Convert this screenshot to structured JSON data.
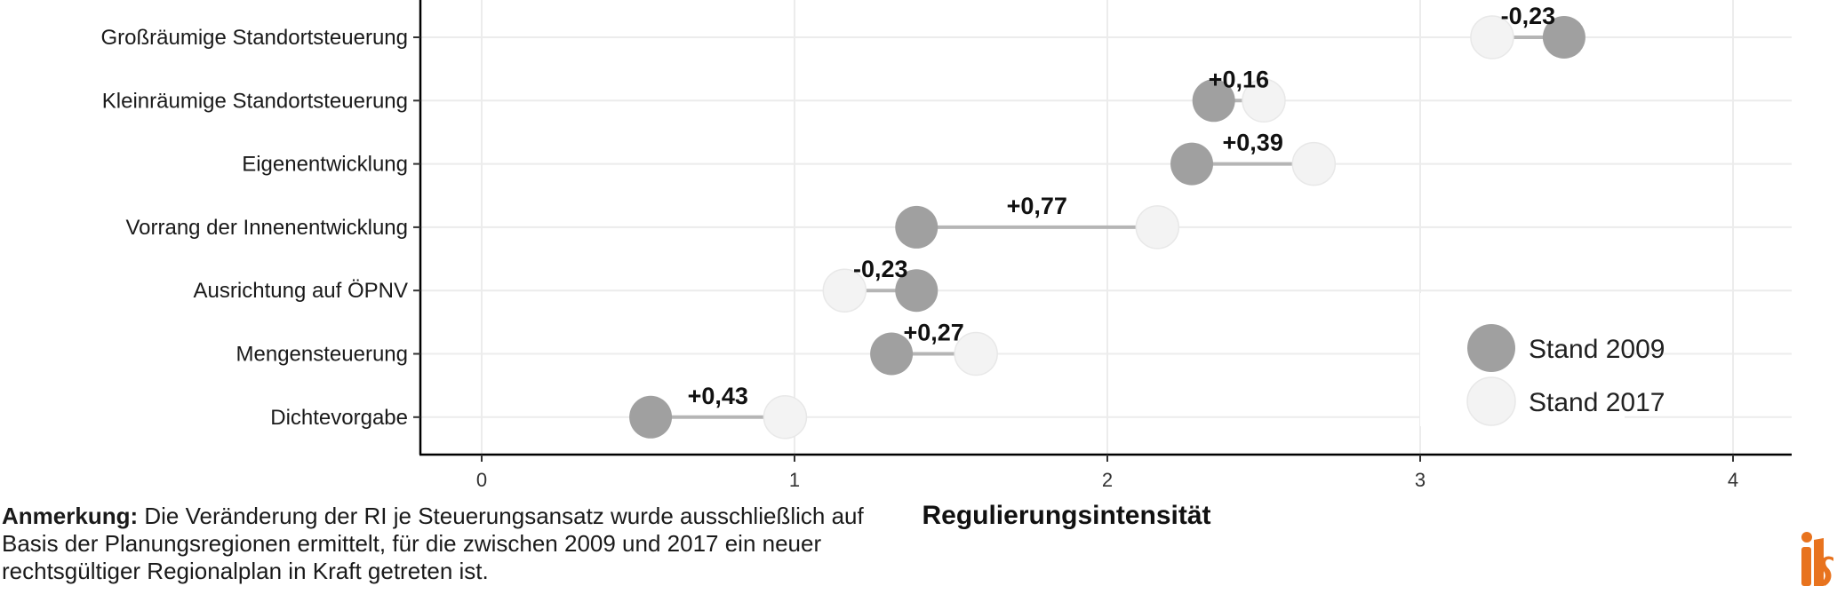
{
  "chart_data": {
    "type": "dumbbell",
    "xlabel": "Regulierungsintensität",
    "ylabel": "",
    "xlim": [
      -0.2,
      4.2
    ],
    "xticks": [
      0,
      1,
      2,
      3,
      4
    ],
    "tick_labels": [
      "0",
      "1",
      "2",
      "3",
      "4"
    ],
    "grid": true,
    "legend_position": "bottom-right",
    "series": [
      {
        "name": "Stand 2009",
        "color": "#a0a0a0"
      },
      {
        "name": "Stand 2017",
        "color": "#f3f3f3"
      }
    ],
    "rows": [
      {
        "category": "Großräumige Standortsteuerung",
        "v2009": 3.46,
        "v2017": 3.23,
        "change": "-0,23"
      },
      {
        "category": "Kleinräumige Standortsteuerung",
        "v2009": 2.34,
        "v2017": 2.5,
        "change": "+0,16"
      },
      {
        "category": "Eigenentwicklung",
        "v2009": 2.27,
        "v2017": 2.66,
        "change": "+0,39"
      },
      {
        "category": "Vorrang der Innenentwicklung",
        "v2009": 1.39,
        "v2017": 2.16,
        "change": "+0,77"
      },
      {
        "category": "Ausrichtung auf ÖPNV",
        "v2009": 1.39,
        "v2017": 1.16,
        "change": "-0,23"
      },
      {
        "category": "Mengensteuerung",
        "v2009": 1.31,
        "v2017": 1.58,
        "change": "+0,27"
      },
      {
        "category": "Dichtevorgabe",
        "v2009": 0.54,
        "v2017": 0.97,
        "change": "+0,43"
      }
    ]
  },
  "note": {
    "label": "Anmerkung:",
    "text": "Die Veränderung der RI je Steuerungsansatz wurde ausschließlich auf Basis der Planungsregionen ermittelt, für die zwischen 2009 und 2017 ein neuer rechtsgültiger Regionalplan in Kraft getreten ist."
  },
  "logo": {
    "text": "ils",
    "color": "#e8731e"
  }
}
